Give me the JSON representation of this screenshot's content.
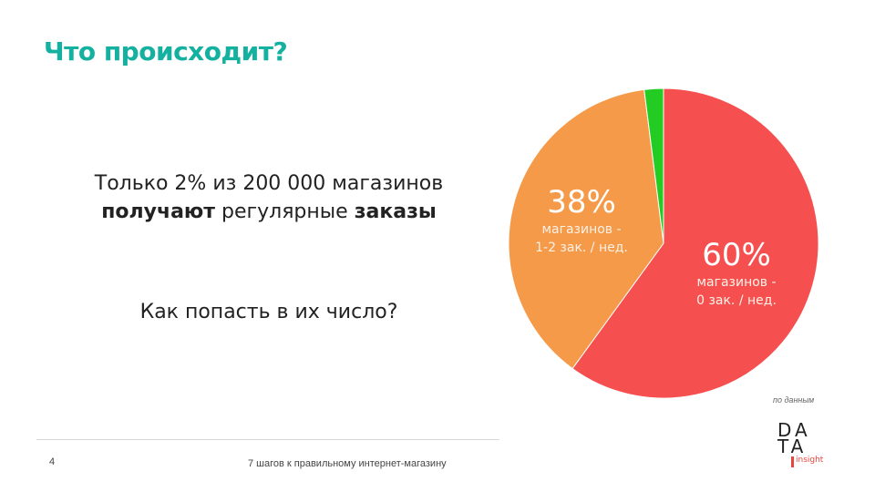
{
  "slide": {
    "title": "Что происходит?",
    "headline_part1": "Только 2% из 200 000 магазинов",
    "headline_bold1": "получают",
    "headline_normal": " регулярные ",
    "headline_bold2": "заказы",
    "question": "Как попасть в их число?",
    "source_note": "по данным",
    "logo_line1": "DA",
    "logo_line2": "TA",
    "logo_line3": "insight",
    "page_number": "4",
    "footer_text": "7 шагов к правильному интернет-магазину"
  },
  "chart_data": {
    "type": "pie",
    "slices": [
      {
        "label": "60%",
        "value": 60,
        "description_line1": "магазинов -",
        "description_line2": "0 зак. / нед.",
        "color": "#f5504f"
      },
      {
        "label": "38%",
        "value": 38,
        "description_line1": "магазинов -",
        "description_line2": "1-2 зак. / нед.",
        "color": "#f59a48"
      },
      {
        "label": "",
        "value": 2,
        "description_line1": "",
        "description_line2": "",
        "color": "#22cc22"
      }
    ]
  },
  "colors": {
    "title": "#14b0a0",
    "accent": "#e8453c"
  }
}
